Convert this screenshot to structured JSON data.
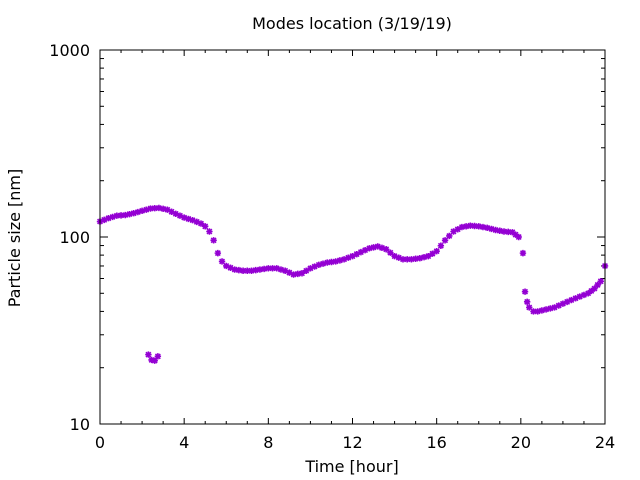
{
  "chart_data": {
    "type": "scatter",
    "title": "Modes location (3/19/19)",
    "xlabel": "Time [hour]",
    "ylabel": "Particle size [nm]",
    "xlim": [
      0,
      24
    ],
    "ylim": [
      10,
      1000
    ],
    "yscale": "log",
    "grid": false,
    "legend": "none",
    "x_ticks": [
      0,
      4,
      8,
      12,
      16,
      20,
      24
    ],
    "x_tick_labels": [
      "0",
      "4",
      "8",
      "12",
      "16",
      "20",
      "24"
    ],
    "y_ticks": [
      10,
      100,
      1000
    ],
    "y_tick_labels": [
      "10",
      "100",
      "1000"
    ],
    "marker_color": "#9400D3",
    "series": [
      {
        "x": [
          0.0,
          0.4,
          0.8,
          1.2,
          1.6,
          2.0,
          2.4,
          2.8,
          3.2,
          3.6,
          4.0,
          4.4,
          4.8,
          5.0,
          5.2,
          5.4,
          5.6,
          5.8,
          6.0,
          6.4,
          6.8,
          7.2,
          7.6,
          8.0,
          8.4,
          8.8,
          9.2,
          9.6,
          10.0,
          10.4,
          10.8,
          11.2,
          11.6,
          12.0,
          12.4,
          12.8,
          13.2,
          13.6,
          14.0,
          14.4,
          14.8,
          15.2,
          15.6,
          16.0,
          16.4,
          16.8,
          17.2,
          17.6,
          18.0,
          18.4,
          18.8,
          19.2,
          19.6,
          19.9,
          20.1,
          20.2,
          20.3,
          20.4,
          20.6,
          20.8,
          21.2,
          21.6,
          22.0,
          22.4,
          22.8,
          23.2,
          23.5,
          23.8,
          24.0
        ],
        "y": [
          121,
          126,
          130,
          131,
          134,
          138,
          142,
          143,
          140,
          133,
          127,
          123,
          118,
          114,
          107,
          96,
          82,
          74,
          70,
          67,
          66,
          66,
          67,
          68,
          68,
          66,
          63,
          64,
          68,
          71,
          73,
          74,
          76,
          79,
          83,
          87,
          89,
          86,
          79,
          76,
          76,
          77,
          79,
          84,
          96,
          107,
          113,
          115,
          114,
          112,
          109,
          107,
          106,
          100,
          82,
          51,
          45,
          42,
          40,
          40,
          41,
          42,
          44,
          46,
          48,
          50,
          53,
          58,
          70
        ]
      },
      {
        "x": [
          2.3,
          2.45,
          2.6,
          2.75
        ],
        "y": [
          23.5,
          22,
          21.8,
          23
        ]
      }
    ]
  }
}
